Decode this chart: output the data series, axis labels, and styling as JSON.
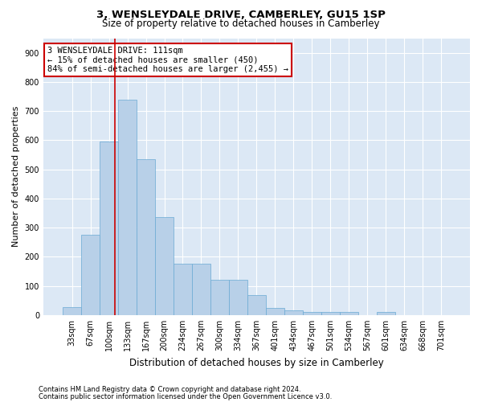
{
  "title": "3, WENSLEYDALE DRIVE, CAMBERLEY, GU15 1SP",
  "subtitle": "Size of property relative to detached houses in Camberley",
  "xlabel": "Distribution of detached houses by size in Camberley",
  "ylabel": "Number of detached properties",
  "bar_heights": [
    27,
    275,
    595,
    740,
    535,
    335,
    175,
    175,
    120,
    120,
    68,
    25,
    15,
    12,
    10,
    10,
    0,
    10,
    0,
    0,
    0
  ],
  "bin_labels": [
    "33sqm",
    "67sqm",
    "100sqm",
    "133sqm",
    "167sqm",
    "200sqm",
    "234sqm",
    "267sqm",
    "300sqm",
    "334sqm",
    "367sqm",
    "401sqm",
    "434sqm",
    "467sqm",
    "501sqm",
    "534sqm",
    "567sqm",
    "601sqm",
    "634sqm",
    "668sqm",
    "701sqm"
  ],
  "bar_color": "#b8d0e8",
  "bar_edgecolor": "#6aaad4",
  "annotation_text_line1": "3 WENSLEYDALE DRIVE: 111sqm",
  "annotation_text_line2": "← 15% of detached houses are smaller (450)",
  "annotation_text_line3": "84% of semi-detached houses are larger (2,455) →",
  "annotation_box_color": "#cc0000",
  "vline_color": "#cc0000",
  "ylim": [
    0,
    950
  ],
  "yticks": [
    0,
    100,
    200,
    300,
    400,
    500,
    600,
    700,
    800,
    900
  ],
  "background_color": "#dce8f5",
  "footer_line1": "Contains HM Land Registry data © Crown copyright and database right 2024.",
  "footer_line2": "Contains public sector information licensed under the Open Government Licence v3.0.",
  "title_fontsize": 9.5,
  "subtitle_fontsize": 8.5,
  "ylabel_fontsize": 8,
  "xlabel_fontsize": 8.5,
  "tick_fontsize": 7,
  "footer_fontsize": 6,
  "annotation_fontsize": 7.5
}
